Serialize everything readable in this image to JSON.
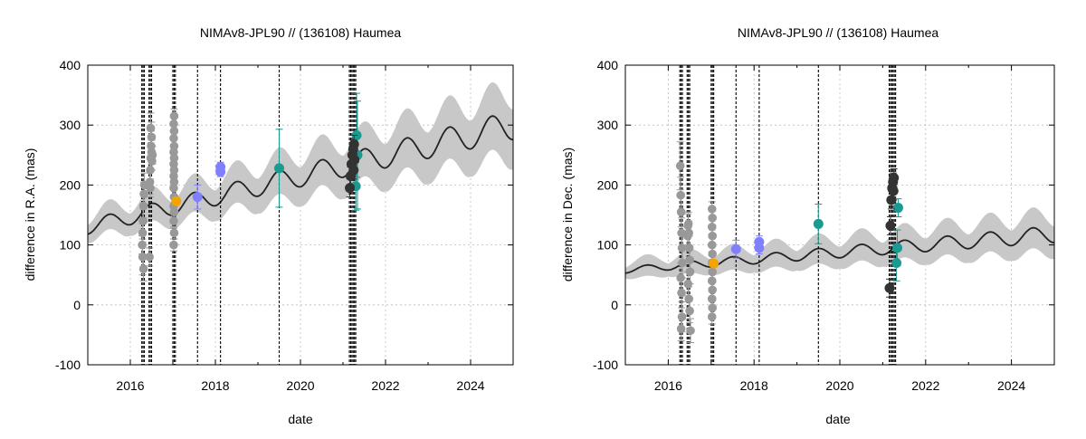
{
  "chart_data": [
    {
      "type": "scatter",
      "title": "NIMAv8-JPL90 // (136108) Haumea",
      "xlabel": "date",
      "ylabel": "difference in R.A. (mas)",
      "xlim": [
        2015.0,
        2025.0
      ],
      "ylim": [
        -100,
        400
      ],
      "xticks": [
        2016,
        2018,
        2020,
        2022,
        2024
      ],
      "xtick_labels": [
        "2016",
        "2018",
        "2020",
        "2022",
        "2024"
      ],
      "yticks": [
        -100,
        0,
        100,
        200,
        300,
        400
      ],
      "ytick_labels": [
        "-100",
        "0",
        "100",
        "200",
        "300",
        "400"
      ],
      "grid": true,
      "colors": {
        "model": "#222222",
        "band": "#c8c8c8",
        "gray": "#999999",
        "orange": "#f5a300",
        "blue": "#8080ff",
        "teal": "#1a9a90",
        "dark": "#333333"
      },
      "model": {
        "base": 130,
        "slope": 17,
        "amp": 12,
        "amp_growth": 1.2,
        "band_base": 15,
        "band_growth": 3.5
      },
      "vlines": [
        2016.27,
        2016.3,
        2016.33,
        2016.44,
        2016.47,
        2016.5,
        2017.0,
        2017.03,
        2017.06,
        2017.58,
        2018.12,
        2019.5,
        2021.15,
        2021.18,
        2021.21,
        2021.24,
        2021.27,
        2021.3
      ],
      "series": [
        {
          "color": "gray",
          "r": 4.8,
          "points": [
            {
              "x": 2016.28,
              "y": 100,
              "e": 15
            },
            {
              "x": 2016.29,
              "y": 120,
              "e": 15
            },
            {
              "x": 2016.3,
              "y": 140,
              "e": 20
            },
            {
              "x": 2016.31,
              "y": 165,
              "e": 20
            },
            {
              "x": 2016.32,
              "y": 185,
              "e": 20
            },
            {
              "x": 2016.33,
              "y": 200,
              "e": 20
            },
            {
              "x": 2016.29,
              "y": 80,
              "e": 30
            },
            {
              "x": 2016.31,
              "y": 60,
              "e": 20
            },
            {
              "x": 2016.45,
              "y": 80,
              "e": 15
            },
            {
              "x": 2016.46,
              "y": 205,
              "e": 20
            },
            {
              "x": 2016.47,
              "y": 225,
              "e": 20
            },
            {
              "x": 2016.48,
              "y": 245,
              "e": 20
            },
            {
              "x": 2016.5,
              "y": 255,
              "e": 20
            },
            {
              "x": 2016.51,
              "y": 240,
              "e": 15
            },
            {
              "x": 2016.52,
              "y": 250,
              "e": 15
            },
            {
              "x": 2016.49,
              "y": 265,
              "e": 25
            },
            {
              "x": 2016.5,
              "y": 280,
              "e": 25
            },
            {
              "x": 2016.48,
              "y": 295,
              "e": 25
            },
            {
              "x": 2016.47,
              "y": 195,
              "e": 15
            },
            {
              "x": 2017.02,
              "y": 100,
              "e": 10
            },
            {
              "x": 2017.03,
              "y": 120,
              "e": 10
            },
            {
              "x": 2017.02,
              "y": 140,
              "e": 12
            },
            {
              "x": 2017.03,
              "y": 155,
              "e": 12
            },
            {
              "x": 2017.02,
              "y": 165,
              "e": 12
            },
            {
              "x": 2017.03,
              "y": 180,
              "e": 12
            },
            {
              "x": 2017.02,
              "y": 195,
              "e": 12
            },
            {
              "x": 2017.03,
              "y": 205,
              "e": 12
            },
            {
              "x": 2017.02,
              "y": 215,
              "e": 12
            },
            {
              "x": 2017.03,
              "y": 225,
              "e": 12
            },
            {
              "x": 2017.02,
              "y": 235,
              "e": 12
            },
            {
              "x": 2017.03,
              "y": 245,
              "e": 12
            },
            {
              "x": 2017.02,
              "y": 255,
              "e": 12
            },
            {
              "x": 2017.03,
              "y": 265,
              "e": 12
            },
            {
              "x": 2017.02,
              "y": 278,
              "e": 12
            },
            {
              "x": 2017.03,
              "y": 290,
              "e": 12
            },
            {
              "x": 2017.02,
              "y": 302,
              "e": 12
            },
            {
              "x": 2017.03,
              "y": 315,
              "e": 12
            }
          ]
        },
        {
          "color": "orange",
          "r": 5.5,
          "points": [
            {
              "x": 2017.08,
              "y": 173,
              "e": 6
            }
          ]
        },
        {
          "color": "blue",
          "r": 5.5,
          "points": [
            {
              "x": 2017.58,
              "y": 180,
              "e": 20
            },
            {
              "x": 2018.12,
              "y": 222,
              "e": 8
            },
            {
              "x": 2018.12,
              "y": 230,
              "e": 8
            }
          ]
        },
        {
          "color": "teal",
          "r": 5.5,
          "points": [
            {
              "x": 2019.5,
              "y": 228,
              "e": 65
            },
            {
              "x": 2021.32,
              "y": 283,
              "e": 70
            },
            {
              "x": 2021.34,
              "y": 250,
              "e": 90
            },
            {
              "x": 2021.3,
              "y": 198,
              "e": 40
            }
          ]
        },
        {
          "color": "dark",
          "r": 5.5,
          "points": [
            {
              "x": 2021.16,
              "y": 195,
              "e": 15
            },
            {
              "x": 2021.18,
              "y": 215,
              "e": 15
            },
            {
              "x": 2021.2,
              "y": 235,
              "e": 15
            },
            {
              "x": 2021.22,
              "y": 250,
              "e": 15
            },
            {
              "x": 2021.24,
              "y": 260,
              "e": 15
            },
            {
              "x": 2021.26,
              "y": 268,
              "e": 15
            },
            {
              "x": 2021.27,
              "y": 242,
              "e": 15
            },
            {
              "x": 2021.25,
              "y": 225,
              "e": 15
            }
          ]
        }
      ]
    },
    {
      "type": "scatter",
      "title": "NIMAv8-JPL90 // (136108) Haumea",
      "xlabel": "date",
      "ylabel": "difference in Dec. (mas)",
      "xlim": [
        2015.0,
        2025.0
      ],
      "ylim": [
        -100,
        400
      ],
      "xticks": [
        2016,
        2018,
        2020,
        2022,
        2024
      ],
      "xtick_labels": [
        "2016",
        "2018",
        "2020",
        "2022",
        "2024"
      ],
      "yticks": [
        -100,
        0,
        100,
        200,
        300,
        400
      ],
      "ytick_labels": [
        "-100",
        "0",
        "100",
        "200",
        "300",
        "400"
      ],
      "grid": true,
      "colors": {
        "model": "#222222",
        "band": "#c8c8c8",
        "gray": "#999999",
        "orange": "#f5a300",
        "blue": "#8080ff",
        "teal": "#1a9a90",
        "dark": "#333333"
      },
      "model": {
        "base": 58,
        "slope": 6,
        "amp": 5,
        "amp_growth": 0.9,
        "band_base": 9,
        "band_growth": 1.8
      },
      "vlines": [
        2016.27,
        2016.3,
        2016.33,
        2016.44,
        2016.47,
        2016.5,
        2017.0,
        2017.03,
        2017.06,
        2017.58,
        2018.12,
        2019.5,
        2021.15,
        2021.18,
        2021.21,
        2021.24,
        2021.27,
        2021.3
      ],
      "series": [
        {
          "color": "gray",
          "r": 4.8,
          "points": [
            {
              "x": 2016.28,
              "y": 232,
              "e": 40
            },
            {
              "x": 2016.29,
              "y": 183,
              "e": 30
            },
            {
              "x": 2016.3,
              "y": 155,
              "e": 25
            },
            {
              "x": 2016.31,
              "y": 120,
              "e": 25
            },
            {
              "x": 2016.32,
              "y": 95,
              "e": 25
            },
            {
              "x": 2016.33,
              "y": 70,
              "e": 25
            },
            {
              "x": 2016.29,
              "y": 45,
              "e": 25
            },
            {
              "x": 2016.31,
              "y": 20,
              "e": 25
            },
            {
              "x": 2016.32,
              "y": -20,
              "e": 25
            },
            {
              "x": 2016.3,
              "y": -40,
              "e": 20
            },
            {
              "x": 2016.45,
              "y": 115,
              "e": 20
            },
            {
              "x": 2016.46,
              "y": 132,
              "e": 20
            },
            {
              "x": 2016.47,
              "y": 135,
              "e": 20
            },
            {
              "x": 2016.48,
              "y": 120,
              "e": 20
            },
            {
              "x": 2016.49,
              "y": 95,
              "e": 20
            },
            {
              "x": 2016.5,
              "y": 75,
              "e": 20
            },
            {
              "x": 2016.51,
              "y": 55,
              "e": 20
            },
            {
              "x": 2016.46,
              "y": 35,
              "e": 20
            },
            {
              "x": 2016.48,
              "y": 10,
              "e": 20
            },
            {
              "x": 2016.5,
              "y": -10,
              "e": 20
            },
            {
              "x": 2016.52,
              "y": -43,
              "e": 20
            },
            {
              "x": 2017.02,
              "y": -20,
              "e": 12
            },
            {
              "x": 2017.03,
              "y": -5,
              "e": 12
            },
            {
              "x": 2017.02,
              "y": 10,
              "e": 12
            },
            {
              "x": 2017.03,
              "y": 25,
              "e": 12
            },
            {
              "x": 2017.02,
              "y": 40,
              "e": 12
            },
            {
              "x": 2017.03,
              "y": 55,
              "e": 12
            },
            {
              "x": 2017.02,
              "y": 70,
              "e": 12
            },
            {
              "x": 2017.03,
              "y": 85,
              "e": 12
            },
            {
              "x": 2017.02,
              "y": 100,
              "e": 12
            },
            {
              "x": 2017.03,
              "y": 115,
              "e": 12
            },
            {
              "x": 2017.02,
              "y": 130,
              "e": 12
            },
            {
              "x": 2017.03,
              "y": 145,
              "e": 12
            },
            {
              "x": 2017.02,
              "y": 160,
              "e": 12
            }
          ]
        },
        {
          "color": "orange",
          "r": 5.5,
          "points": [
            {
              "x": 2017.06,
              "y": 69,
              "e": 6
            }
          ]
        },
        {
          "color": "blue",
          "r": 5.5,
          "points": [
            {
              "x": 2017.58,
              "y": 93,
              "e": 15
            },
            {
              "x": 2018.12,
              "y": 95,
              "e": 10
            },
            {
              "x": 2018.12,
              "y": 105,
              "e": 10
            }
          ]
        },
        {
          "color": "teal",
          "r": 5.5,
          "points": [
            {
              "x": 2019.5,
              "y": 135,
              "e": 33
            },
            {
              "x": 2021.32,
              "y": 70,
              "e": 30
            },
            {
              "x": 2021.34,
              "y": 95,
              "e": 30
            },
            {
              "x": 2021.36,
              "y": 162,
              "e": 15
            }
          ]
        },
        {
          "color": "dark",
          "r": 5.5,
          "points": [
            {
              "x": 2021.16,
              "y": 28,
              "e": 15
            },
            {
              "x": 2021.18,
              "y": 132,
              "e": 15
            },
            {
              "x": 2021.2,
              "y": 175,
              "e": 15
            },
            {
              "x": 2021.22,
              "y": 195,
              "e": 15
            },
            {
              "x": 2021.24,
              "y": 205,
              "e": 15
            },
            {
              "x": 2021.26,
              "y": 212,
              "e": 15
            },
            {
              "x": 2021.25,
              "y": 190,
              "e": 15
            }
          ]
        }
      ]
    }
  ]
}
